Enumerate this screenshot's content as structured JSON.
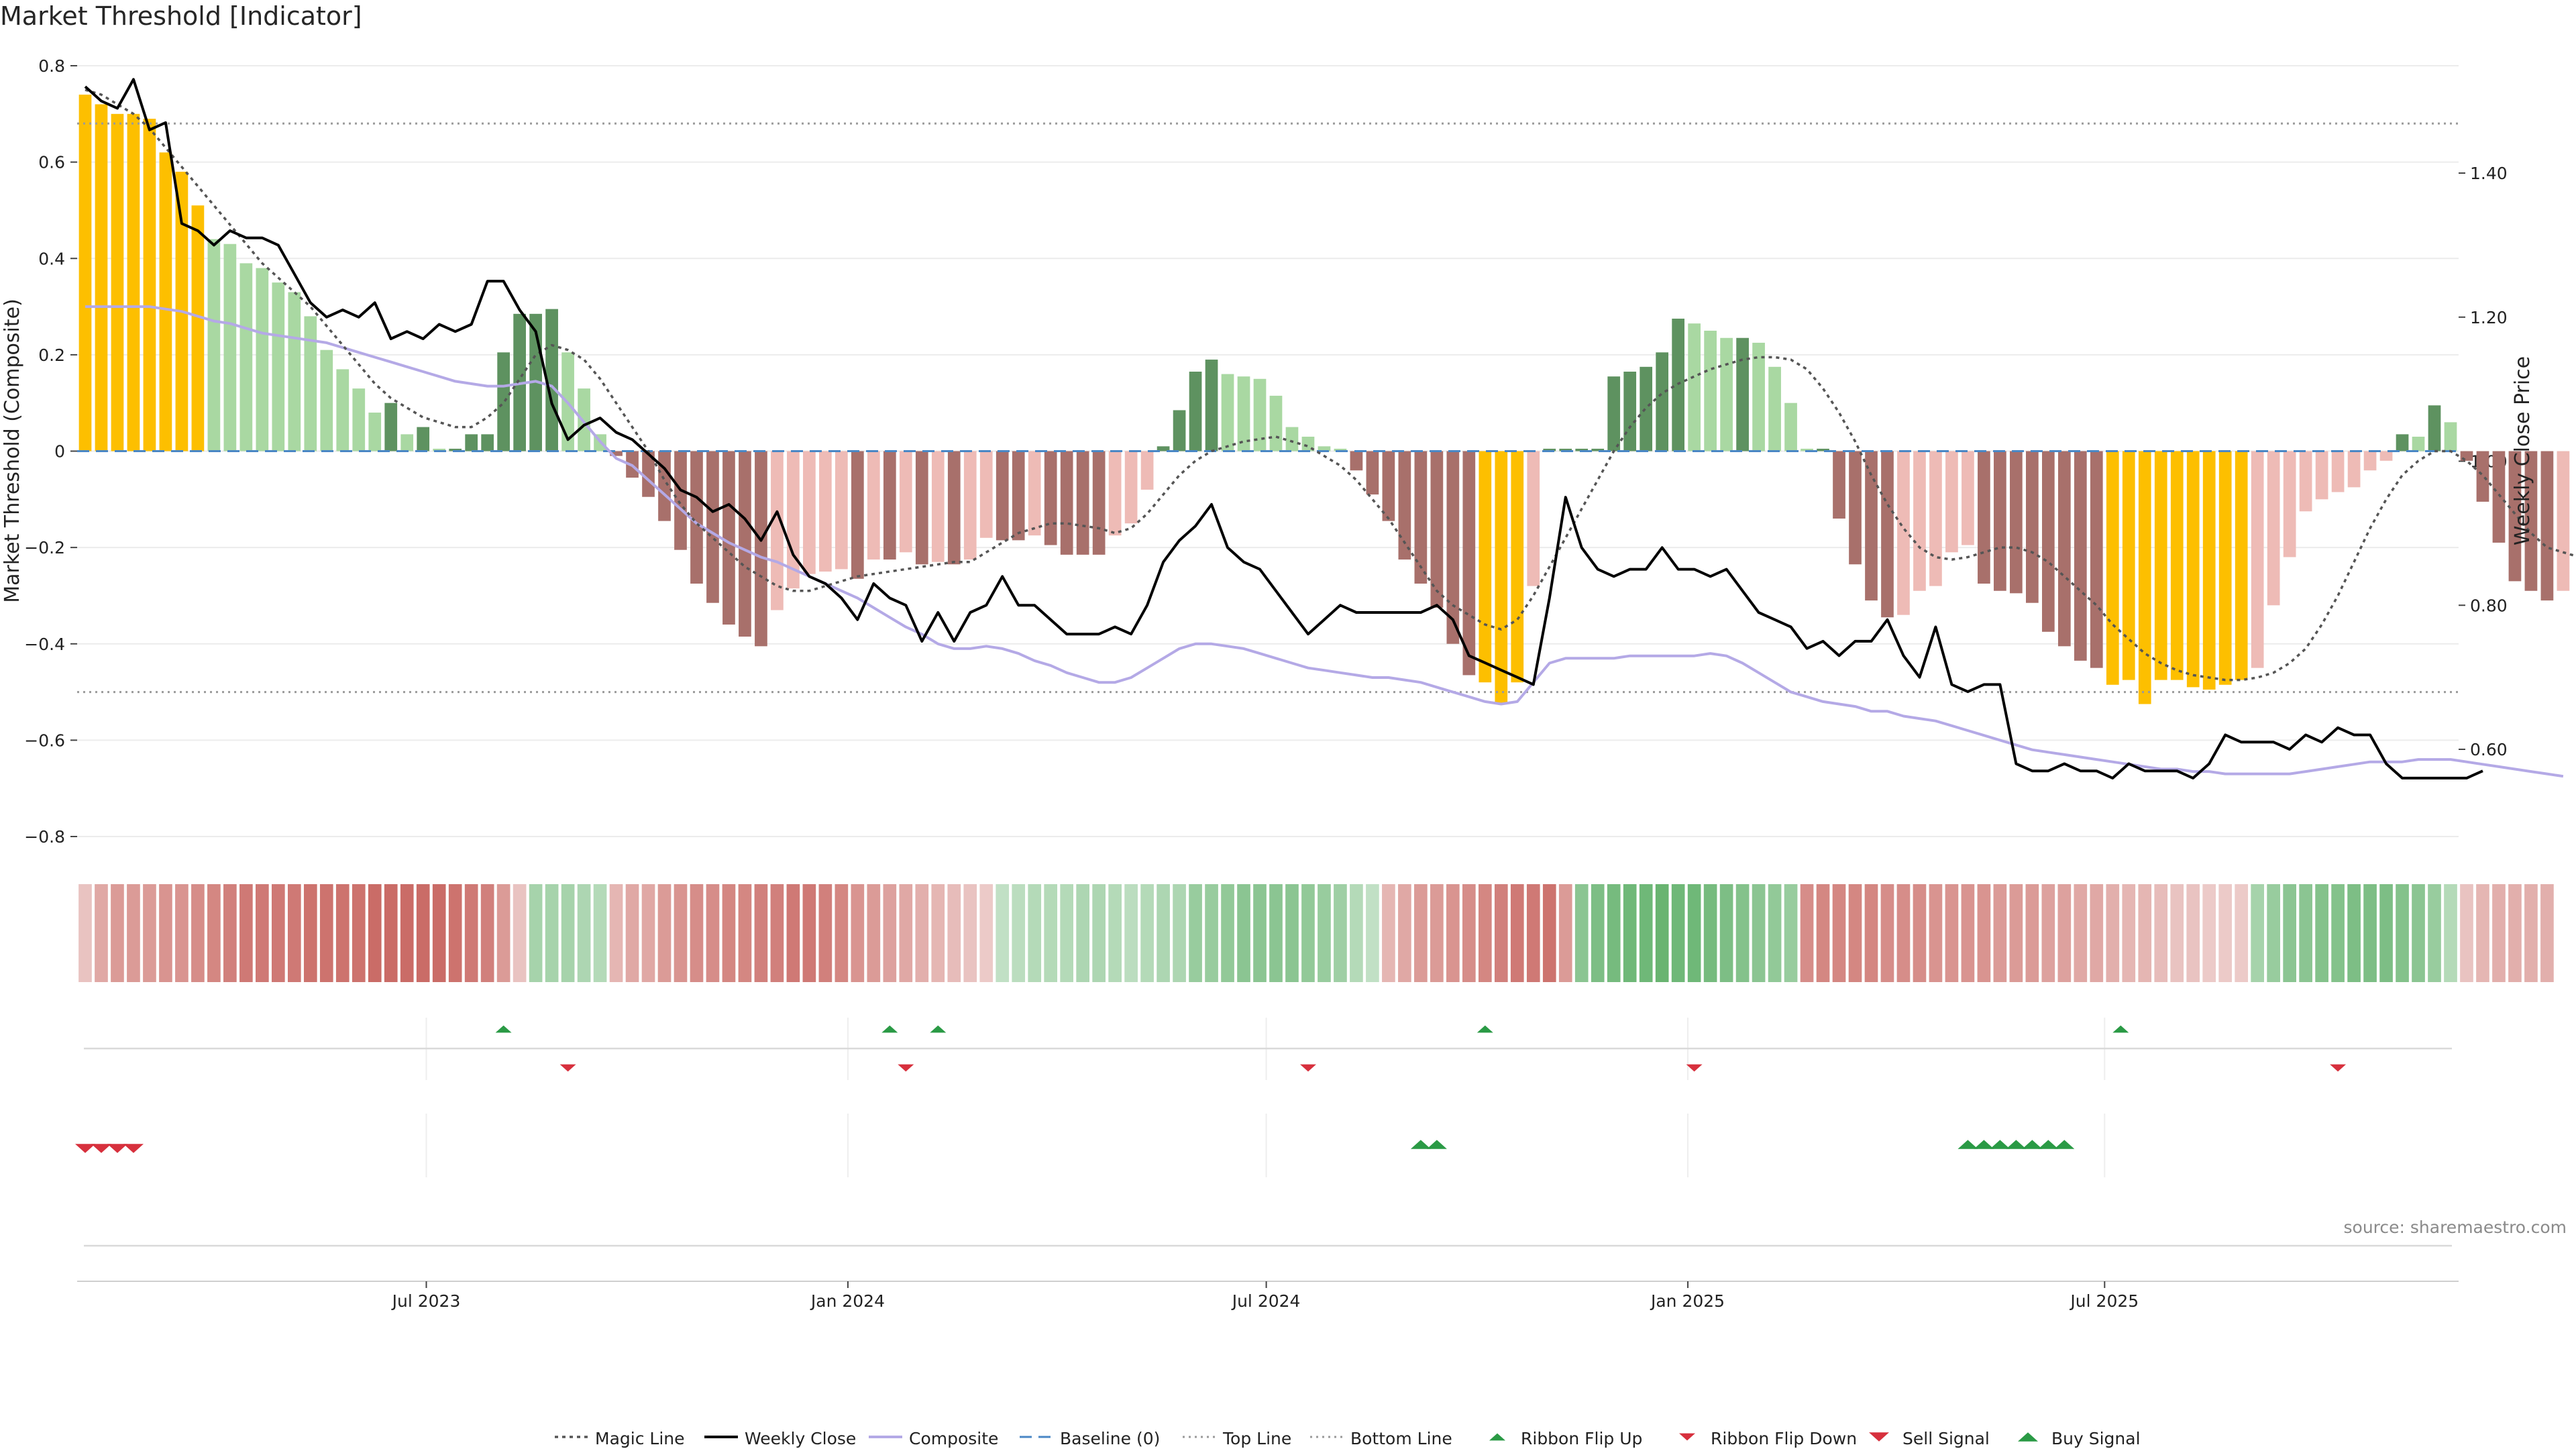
{
  "title": "Market Threshold [Indicator]",
  "source": "source: sharemaestro.com",
  "colors": {
    "magic": "#555555",
    "close": "#000000",
    "composite": "#b4a9e6",
    "baseline": "#4a87c5",
    "refline": "#9a9a9a",
    "flip_up": "#2a9a45",
    "flip_down": "#d7303d",
    "extreme": "#fdbf00",
    "pos_strong": "#5e9260",
    "pos_weak": "#a9d8a2",
    "neg_strong": "#a8706b",
    "neg_weak": "#eebbb6"
  },
  "chart_data": {
    "type": "bar+line",
    "title": "Market Threshold [Indicator]",
    "ylabel": "Market Threshold (Composite)",
    "y2label": "Weekly Close Price",
    "ylim": [
      -0.8,
      0.8
    ],
    "yticks": [
      0.8,
      0.6,
      0.4,
      0.2,
      0,
      -0.2,
      -0.4,
      -0.6,
      -0.8
    ],
    "yticklabels": [
      "0.8",
      "0.6",
      "0.4",
      "0.2",
      "0",
      "−0.2",
      "−0.4",
      "−0.6",
      "−0.8"
    ],
    "y2lim": [
      0.46,
      1.63
    ],
    "y2ticks": [
      1.4,
      1.2,
      1.0,
      0.8,
      0.6
    ],
    "y2ticklabels": [
      "1.40",
      "1.20",
      "1.00",
      "0.80",
      "0.60"
    ],
    "top_line": 0.68,
    "bottom_line": -0.5,
    "baseline": 0,
    "x_weeks": 148,
    "xticks": [
      {
        "week": 21.7,
        "label": "Jul 2023"
      },
      {
        "week": 47.9,
        "label": "Jan 2024"
      },
      {
        "week": 73.9,
        "label": "Jul 2024"
      },
      {
        "week": 100.1,
        "label": "Jan 2025"
      },
      {
        "week": 126,
        "label": "Jul 2025"
      }
    ],
    "composite_bars": [
      0.74,
      0.72,
      0.7,
      0.7,
      0.69,
      0.62,
      0.58,
      0.51,
      0.44,
      0.43,
      0.39,
      0.38,
      0.35,
      0.33,
      0.28,
      0.21,
      0.17,
      0.13,
      0.08,
      0.1,
      0.035,
      0.05,
      0.005,
      0.005,
      0.035,
      0.035,
      0.205,
      0.285,
      0.285,
      0.295,
      0.205,
      0.13,
      0.035,
      -0.01,
      -0.055,
      -0.095,
      -0.145,
      -0.205,
      -0.275,
      -0.315,
      -0.36,
      -0.385,
      -0.405,
      -0.33,
      -0.285,
      -0.255,
      -0.25,
      -0.245,
      -0.265,
      -0.225,
      -0.225,
      -0.21,
      -0.235,
      -0.23,
      -0.235,
      -0.225,
      -0.18,
      -0.185,
      -0.185,
      -0.175,
      -0.195,
      -0.215,
      -0.215,
      -0.215,
      -0.175,
      -0.15,
      -0.08,
      0.01,
      0.085,
      0.165,
      0.19,
      0.16,
      0.155,
      0.15,
      0.115,
      0.05,
      0.03,
      0.01,
      0.005,
      -0.04,
      -0.09,
      -0.145,
      -0.225,
      -0.275,
      -0.325,
      -0.4,
      -0.465,
      -0.48,
      -0.525,
      -0.48,
      -0.28,
      0.005,
      0.005,
      0.005,
      0.005,
      0.155,
      0.165,
      0.175,
      0.205,
      0.275,
      0.265,
      0.25,
      0.235,
      0.235,
      0.225,
      0.175,
      0.1,
      0.005,
      0.005,
      -0.14,
      -0.235,
      -0.31,
      -0.345,
      -0.34,
      -0.29,
      -0.28,
      -0.21,
      -0.195,
      -0.275,
      -0.29,
      -0.295,
      -0.315,
      -0.375,
      -0.405,
      -0.435,
      -0.45,
      -0.485,
      -0.475,
      -0.525,
      -0.475,
      -0.475,
      -0.49,
      -0.495,
      -0.485,
      -0.475,
      -0.45,
      -0.32,
      -0.22,
      -0.125,
      -0.1,
      -0.085,
      -0.075,
      -0.04,
      -0.02,
      0.035,
      0.03,
      0.095,
      0.06,
      -0.02,
      -0.105,
      -0.19,
      -0.27,
      -0.29,
      -0.31,
      -0.29
    ],
    "weekly_close": [
      1.52,
      1.5,
      1.49,
      1.53,
      1.46,
      1.47,
      1.33,
      1.32,
      1.3,
      1.32,
      1.31,
      1.31,
      1.3,
      1.26,
      1.22,
      1.2,
      1.21,
      1.2,
      1.22,
      1.17,
      1.18,
      1.17,
      1.19,
      1.18,
      1.19,
      1.25,
      1.25,
      1.21,
      1.18,
      1.08,
      1.03,
      1.05,
      1.06,
      1.04,
      1.03,
      1.01,
      0.99,
      0.96,
      0.95,
      0.93,
      0.94,
      0.92,
      0.89,
      0.93,
      0.87,
      0.84,
      0.83,
      0.81,
      0.78,
      0.83,
      0.81,
      0.8,
      0.75,
      0.79,
      0.75,
      0.79,
      0.8,
      0.84,
      0.8,
      0.8,
      0.78,
      0.76,
      0.76,
      0.76,
      0.77,
      0.76,
      0.8,
      0.86,
      0.89,
      0.91,
      0.94,
      0.88,
      0.86,
      0.85,
      0.82,
      0.79,
      0.76,
      0.78,
      0.8,
      0.79,
      0.79,
      0.79,
      0.79,
      0.79,
      0.8,
      0.78,
      0.73,
      0.72,
      0.71,
      0.7,
      0.69,
      0.81,
      0.95,
      0.88,
      0.85,
      0.84,
      0.85,
      0.85,
      0.88,
      0.85,
      0.85,
      0.84,
      0.85,
      0.82,
      0.79,
      0.78,
      0.77,
      0.74,
      0.75,
      0.73,
      0.75,
      0.75,
      0.78,
      0.73,
      0.7,
      0.77,
      0.69,
      0.68,
      0.69,
      0.69,
      0.58,
      0.57,
      0.57,
      0.58,
      0.57,
      0.57,
      0.56,
      0.58,
      0.57,
      0.57,
      0.57,
      0.56,
      0.58,
      0.62,
      0.61,
      0.61,
      0.61,
      0.6,
      0.62,
      0.61,
      0.63,
      0.62,
      0.62,
      0.58,
      0.56,
      0.56,
      0.56,
      0.56,
      0.56,
      0.57
    ],
    "composite_line": [
      0.3,
      0.3,
      0.3,
      0.3,
      0.3,
      0.295,
      0.29,
      0.28,
      0.27,
      0.265,
      0.255,
      0.245,
      0.24,
      0.235,
      0.23,
      0.225,
      0.215,
      0.205,
      0.195,
      0.185,
      0.175,
      0.165,
      0.155,
      0.145,
      0.14,
      0.135,
      0.135,
      0.14,
      0.145,
      0.135,
      0.1,
      0.06,
      0.02,
      -0.015,
      -0.03,
      -0.06,
      -0.09,
      -0.12,
      -0.15,
      -0.17,
      -0.19,
      -0.205,
      -0.22,
      -0.23,
      -0.245,
      -0.26,
      -0.275,
      -0.29,
      -0.305,
      -0.325,
      -0.345,
      -0.365,
      -0.38,
      -0.4,
      -0.41,
      -0.41,
      -0.405,
      -0.41,
      -0.42,
      -0.435,
      -0.445,
      -0.46,
      -0.47,
      -0.48,
      -0.48,
      -0.47,
      -0.45,
      -0.43,
      -0.41,
      -0.4,
      -0.4,
      -0.405,
      -0.41,
      -0.42,
      -0.43,
      -0.44,
      -0.45,
      -0.455,
      -0.46,
      -0.465,
      -0.47,
      -0.47,
      -0.475,
      -0.48,
      -0.49,
      -0.5,
      -0.51,
      -0.52,
      -0.525,
      -0.52,
      -0.48,
      -0.44,
      -0.43,
      -0.43,
      -0.43,
      -0.43,
      -0.425,
      -0.425,
      -0.425,
      -0.425,
      -0.425,
      -0.42,
      -0.425,
      -0.44,
      -0.46,
      -0.48,
      -0.5,
      -0.51,
      -0.52,
      -0.525,
      -0.53,
      -0.54,
      -0.54,
      -0.55,
      -0.555,
      -0.56,
      -0.57,
      -0.58,
      -0.59,
      -0.6,
      -0.61,
      -0.62,
      -0.625,
      -0.63,
      -0.635,
      -0.64,
      -0.645,
      -0.65,
      -0.655,
      -0.66,
      -0.66,
      -0.665,
      -0.665,
      -0.67,
      -0.67,
      -0.67,
      -0.67,
      -0.67,
      -0.665,
      -0.66,
      -0.655,
      -0.65,
      -0.645,
      -0.645,
      -0.645,
      -0.64,
      -0.64,
      -0.64,
      -0.645,
      -0.65,
      -0.655,
      -0.66,
      -0.665,
      -0.67,
      -0.675
    ],
    "magic_line": [
      0.75,
      0.74,
      0.72,
      0.7,
      0.67,
      0.63,
      0.59,
      0.55,
      0.51,
      0.47,
      0.43,
      0.39,
      0.36,
      0.33,
      0.3,
      0.26,
      0.22,
      0.18,
      0.14,
      0.11,
      0.09,
      0.07,
      0.06,
      0.05,
      0.05,
      0.07,
      0.1,
      0.15,
      0.2,
      0.22,
      0.21,
      0.19,
      0.15,
      0.1,
      0.05,
      0.0,
      -0.06,
      -0.11,
      -0.15,
      -0.18,
      -0.21,
      -0.24,
      -0.26,
      -0.28,
      -0.29,
      -0.29,
      -0.28,
      -0.27,
      -0.26,
      -0.255,
      -0.25,
      -0.245,
      -0.24,
      -0.235,
      -0.23,
      -0.23,
      -0.21,
      -0.19,
      -0.17,
      -0.16,
      -0.15,
      -0.15,
      -0.155,
      -0.16,
      -0.17,
      -0.16,
      -0.13,
      -0.09,
      -0.05,
      -0.02,
      0.0,
      0.01,
      0.02,
      0.025,
      0.03,
      0.02,
      0.01,
      -0.01,
      -0.03,
      -0.06,
      -0.1,
      -0.14,
      -0.19,
      -0.24,
      -0.29,
      -0.32,
      -0.34,
      -0.36,
      -0.37,
      -0.35,
      -0.3,
      -0.24,
      -0.18,
      -0.12,
      -0.06,
      -0.0,
      0.05,
      0.09,
      0.12,
      0.14,
      0.155,
      0.17,
      0.18,
      0.19,
      0.195,
      0.195,
      0.19,
      0.17,
      0.13,
      0.08,
      0.02,
      -0.05,
      -0.11,
      -0.16,
      -0.2,
      -0.22,
      -0.225,
      -0.22,
      -0.21,
      -0.2,
      -0.2,
      -0.21,
      -0.23,
      -0.26,
      -0.29,
      -0.32,
      -0.36,
      -0.39,
      -0.42,
      -0.44,
      -0.455,
      -0.465,
      -0.47,
      -0.475,
      -0.475,
      -0.47,
      -0.46,
      -0.44,
      -0.41,
      -0.36,
      -0.3,
      -0.23,
      -0.16,
      -0.1,
      -0.05,
      -0.02,
      0.0,
      0.0,
      -0.02,
      -0.05,
      -0.09,
      -0.13,
      -0.17,
      -0.2,
      -0.21,
      -0.22
    ],
    "ribbon": [
      -0.2,
      -0.4,
      -0.5,
      -0.5,
      -0.5,
      -0.55,
      -0.55,
      -0.6,
      -0.65,
      -0.7,
      -0.75,
      -0.75,
      -0.75,
      -0.75,
      -0.8,
      -0.8,
      -0.8,
      -0.8,
      -0.85,
      -0.85,
      -0.85,
      -0.85,
      -0.85,
      -0.8,
      -0.75,
      -0.7,
      -0.5,
      -0.2,
      0.4,
      0.4,
      0.4,
      0.35,
      0.3,
      -0.3,
      -0.4,
      -0.4,
      -0.5,
      -0.55,
      -0.6,
      -0.6,
      -0.65,
      -0.65,
      -0.7,
      -0.7,
      -0.75,
      -0.75,
      -0.7,
      -0.65,
      -0.55,
      -0.5,
      -0.45,
      -0.4,
      -0.35,
      -0.3,
      -0.25,
      -0.2,
      -0.15,
      0.2,
      0.25,
      0.3,
      0.3,
      0.3,
      0.35,
      0.35,
      0.3,
      0.25,
      0.3,
      0.35,
      0.35,
      0.5,
      0.5,
      0.55,
      0.6,
      0.6,
      0.6,
      0.6,
      0.55,
      0.5,
      0.45,
      0.3,
      0.2,
      -0.3,
      -0.4,
      -0.5,
      -0.5,
      -0.55,
      -0.6,
      -0.65,
      -0.7,
      -0.75,
      -0.75,
      -0.8,
      -0.5,
      0.6,
      0.7,
      0.75,
      0.8,
      0.8,
      0.85,
      0.8,
      0.8,
      0.75,
      0.7,
      0.65,
      0.6,
      0.55,
      0.5,
      -0.6,
      -0.65,
      -0.65,
      -0.65,
      -0.65,
      -0.6,
      -0.6,
      -0.6,
      -0.55,
      -0.55,
      -0.55,
      -0.55,
      -0.5,
      -0.5,
      -0.5,
      -0.45,
      -0.45,
      -0.4,
      -0.4,
      -0.35,
      -0.3,
      -0.3,
      -0.25,
      -0.2,
      -0.2,
      -0.15,
      -0.15,
      -0.15,
      0.4,
      0.5,
      0.6,
      0.6,
      0.65,
      0.65,
      0.7,
      0.7,
      0.7,
      0.65,
      0.6,
      0.5,
      0.3,
      -0.2,
      -0.3,
      -0.35,
      -0.35,
      -0.35,
      -0.35
    ],
    "ribbon_flip_up_weeks": [
      26.5,
      50.5,
      53.5,
      87.5,
      127
    ],
    "ribbon_flip_down_weeks": [
      30.5,
      51.5,
      76.5,
      100.5,
      140.5
    ],
    "sell_signal_weeks": [
      0.5,
      1.5,
      2.5,
      3.5
    ],
    "buy_signal_weeks": [
      83.5,
      84.5,
      117.5,
      118.5,
      119.5,
      120.5,
      121.5,
      122.5,
      123.5
    ],
    "legend": [
      {
        "label": "Magic Line",
        "kind": "dotted-dark"
      },
      {
        "label": "Weekly Close",
        "kind": "solid-black"
      },
      {
        "label": "Composite",
        "kind": "solid-lavender"
      },
      {
        "label": "Baseline (0)",
        "kind": "dashed-blue"
      },
      {
        "label": "Top Line",
        "kind": "dotted-grey"
      },
      {
        "label": "Bottom Line",
        "kind": "dotted-grey"
      },
      {
        "label": "Ribbon Flip Up",
        "kind": "triangle-up-small"
      },
      {
        "label": "Ribbon Flip Down",
        "kind": "triangle-down-small"
      },
      {
        "label": "Sell Signal",
        "kind": "triangle-down-large"
      },
      {
        "label": "Buy Signal",
        "kind": "triangle-up-large"
      }
    ]
  }
}
